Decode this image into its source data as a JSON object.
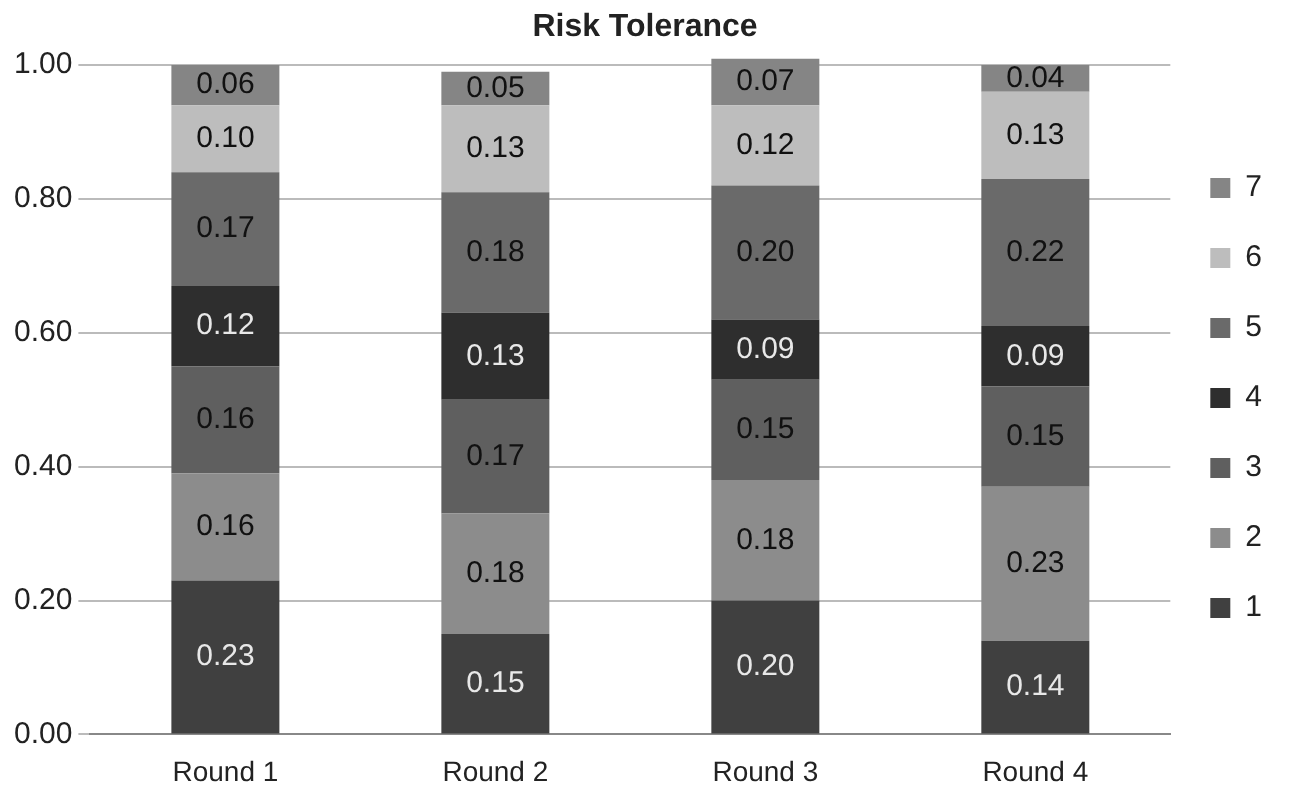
{
  "chart_data": {
    "type": "bar",
    "title": "Risk Tolerance",
    "stacked": true,
    "categories": [
      "Round 1",
      "Round 2",
      "Round 3",
      "Round 4"
    ],
    "series": [
      {
        "name": "1",
        "color": "#404040",
        "values": [
          0.23,
          0.15,
          0.2,
          0.14
        ],
        "value_labels": [
          "0.23",
          "0.15",
          "0.20",
          "0.14"
        ]
      },
      {
        "name": "2",
        "color": "#8c8c8c",
        "values": [
          0.16,
          0.18,
          0.18,
          0.23
        ],
        "value_labels": [
          "0.16",
          "0.18",
          "0.18",
          "0.23"
        ]
      },
      {
        "name": "3",
        "color": "#5f5f5f",
        "values": [
          0.16,
          0.17,
          0.15,
          0.15
        ],
        "value_labels": [
          "0.16",
          "0.17",
          "0.15",
          "0.15"
        ]
      },
      {
        "name": "4",
        "color": "#2e2e2e",
        "values": [
          0.12,
          0.13,
          0.09,
          0.09
        ],
        "value_labels": [
          "0.12",
          "0.13",
          "0.09",
          "0.09"
        ]
      },
      {
        "name": "5",
        "color": "#6a6a6a",
        "values": [
          0.17,
          0.18,
          0.2,
          0.22
        ],
        "value_labels": [
          "0.17",
          "0.18",
          "0.20",
          "0.22"
        ]
      },
      {
        "name": "6",
        "color": "#bdbdbd",
        "values": [
          0.1,
          0.13,
          0.12,
          0.13
        ],
        "value_labels": [
          "0.10",
          "0.13",
          "0.12",
          "0.13"
        ]
      },
      {
        "name": "7",
        "color": "#858585",
        "values": [
          0.06,
          0.05,
          0.07,
          0.04
        ],
        "value_labels": [
          "0.06",
          "0.05",
          "0.07",
          "0.04"
        ]
      }
    ],
    "ylim": [
      0,
      1.01
    ],
    "yticks": [
      {
        "value": 0,
        "label": "0.00"
      },
      {
        "value": 0.2,
        "label": "0.20"
      },
      {
        "value": 0.4,
        "label": "0.40"
      },
      {
        "value": 0.6,
        "label": "0.60"
      },
      {
        "value": 0.8,
        "label": "0.80"
      },
      {
        "value": 1,
        "label": "1.00"
      }
    ],
    "grid": "y",
    "legend": "right"
  }
}
